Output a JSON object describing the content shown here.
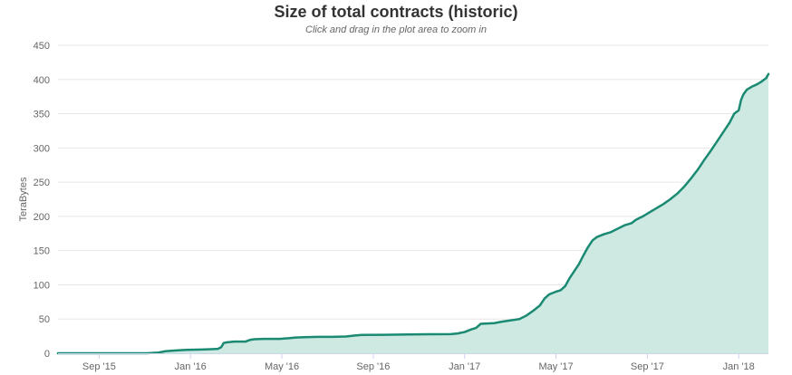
{
  "chart_data": {
    "type": "area",
    "title": "Size of total contracts (historic)",
    "subtitle": "Click and drag in the plot area to zoom in",
    "xlabel": "",
    "ylabel": "TeraBytes",
    "ylim": [
      0,
      450
    ],
    "y_ticks": [
      0,
      50,
      100,
      150,
      200,
      250,
      300,
      350,
      400,
      450
    ],
    "x_range_months": [
      -1.8,
      29.3
    ],
    "x_ticks": [
      {
        "label": "Sep '15",
        "month": 0
      },
      {
        "label": "Jan '16",
        "month": 4
      },
      {
        "label": "May '16",
        "month": 8
      },
      {
        "label": "Sep '16",
        "month": 12
      },
      {
        "label": "Jan '17",
        "month": 16
      },
      {
        "label": "May '17",
        "month": 20
      },
      {
        "label": "Sep '17",
        "month": 24
      },
      {
        "label": "Jan '18",
        "month": 28
      }
    ],
    "grid": true,
    "series": [
      {
        "name": "Size of total contracts",
        "color": "#1a8a72",
        "fill_color": "#cde9e1",
        "points": [
          [
            -1.8,
            0
          ],
          [
            0,
            0
          ],
          [
            2.1,
            0
          ],
          [
            2.6,
            1
          ],
          [
            2.9,
            3
          ],
          [
            3.3,
            4
          ],
          [
            3.8,
            5
          ],
          [
            4.5,
            5.5
          ],
          [
            4.9,
            6
          ],
          [
            5.2,
            6.5
          ],
          [
            5.35,
            9
          ],
          [
            5.45,
            15
          ],
          [
            5.6,
            16
          ],
          [
            5.9,
            17
          ],
          [
            6.4,
            17
          ],
          [
            6.6,
            19.5
          ],
          [
            6.8,
            20.5
          ],
          [
            7.2,
            21
          ],
          [
            7.9,
            21
          ],
          [
            8.3,
            22
          ],
          [
            8.6,
            23
          ],
          [
            9,
            23.5
          ],
          [
            9.6,
            24
          ],
          [
            10.2,
            24
          ],
          [
            10.8,
            24.5
          ],
          [
            11.2,
            26
          ],
          [
            11.5,
            26.8
          ],
          [
            12.5,
            27
          ],
          [
            13.5,
            27.5
          ],
          [
            14.5,
            27.8
          ],
          [
            15.4,
            28
          ],
          [
            15.7,
            29
          ],
          [
            16.0,
            31
          ],
          [
            16.3,
            35
          ],
          [
            16.5,
            37
          ],
          [
            16.7,
            43
          ],
          [
            17.3,
            44
          ],
          [
            17.6,
            46
          ],
          [
            18.0,
            48
          ],
          [
            18.4,
            50
          ],
          [
            18.7,
            55
          ],
          [
            19.0,
            62
          ],
          [
            19.3,
            70
          ],
          [
            19.5,
            80
          ],
          [
            19.7,
            86
          ],
          [
            20.0,
            90
          ],
          [
            20.2,
            92
          ],
          [
            20.4,
            98
          ],
          [
            20.6,
            110
          ],
          [
            20.8,
            120
          ],
          [
            21.0,
            130
          ],
          [
            21.2,
            143
          ],
          [
            21.4,
            155
          ],
          [
            21.6,
            165
          ],
          [
            21.8,
            170
          ],
          [
            22.1,
            174
          ],
          [
            22.4,
            177
          ],
          [
            22.7,
            182
          ],
          [
            23.0,
            187
          ],
          [
            23.3,
            190
          ],
          [
            23.5,
            195
          ],
          [
            23.8,
            200
          ],
          [
            24.1,
            206
          ],
          [
            24.4,
            212
          ],
          [
            24.7,
            218
          ],
          [
            25.0,
            225
          ],
          [
            25.3,
            233
          ],
          [
            25.6,
            243
          ],
          [
            25.9,
            255
          ],
          [
            26.2,
            268
          ],
          [
            26.5,
            283
          ],
          [
            26.8,
            297
          ],
          [
            27.1,
            312
          ],
          [
            27.4,
            327
          ],
          [
            27.6,
            337
          ],
          [
            27.8,
            350
          ],
          [
            28.0,
            355
          ],
          [
            28.1,
            370
          ],
          [
            28.2,
            378
          ],
          [
            28.35,
            385
          ],
          [
            28.6,
            390
          ],
          [
            28.8,
            393
          ],
          [
            29.0,
            397
          ],
          [
            29.2,
            402
          ],
          [
            29.3,
            408
          ]
        ]
      }
    ]
  }
}
